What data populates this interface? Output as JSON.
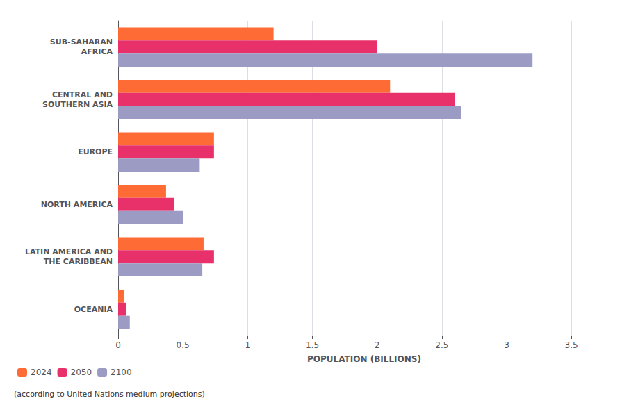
{
  "chart_data": {
    "type": "bar",
    "orientation": "horizontal",
    "xlabel": "POPULATION (BILLIONS)",
    "annotations": [
      "(according to United Nations medium projections)"
    ],
    "categories": [
      "SUB-SAHARAN\nAFRICA",
      "CENTRAL AND\nSOUTHERN ASIA",
      "EUROPE",
      "NORTH AMERICA",
      "LATIN AMERICA AND\nTHE CARIBBEAN",
      "OCEANIA"
    ],
    "series": [
      {
        "name": "2024",
        "color": "#FF6B35",
        "values": [
          1.2,
          2.1,
          0.74,
          0.37,
          0.66,
          0.045
        ]
      },
      {
        "name": "2050",
        "color": "#E8306A",
        "values": [
          2.0,
          2.6,
          0.74,
          0.43,
          0.74,
          0.06
        ]
      },
      {
        "name": "2100",
        "color": "#9B9BC4",
        "values": [
          3.2,
          2.65,
          0.63,
          0.5,
          0.65,
          0.09
        ]
      }
    ],
    "xlim": [
      0,
      3.8
    ],
    "xticks": [
      0,
      0.5,
      1.0,
      1.5,
      2.0,
      2.5,
      3.0,
      3.5
    ],
    "grid": true,
    "legend": "lower left"
  }
}
